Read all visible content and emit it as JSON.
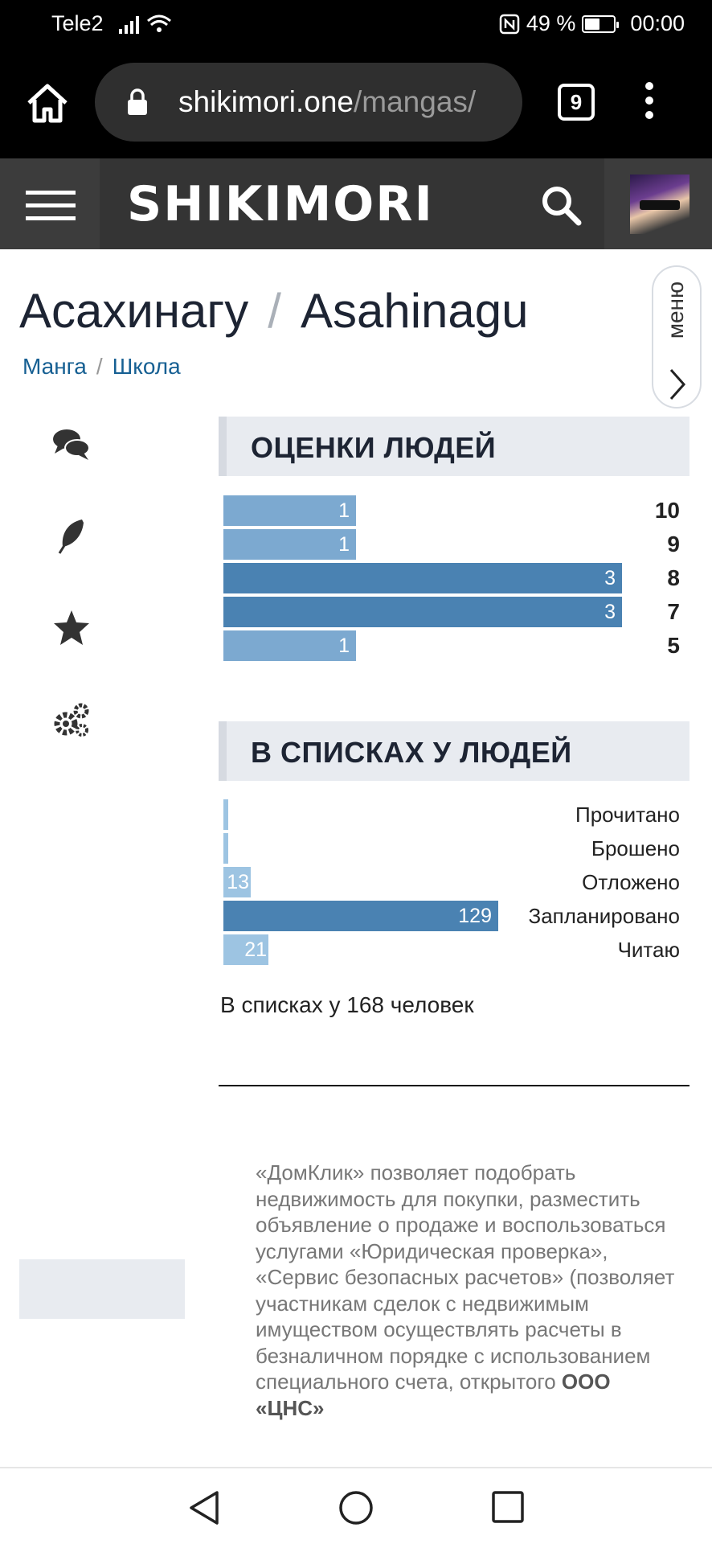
{
  "status_bar": {
    "carrier": "Tele2",
    "battery": "49 %",
    "time": "00:00",
    "battery_level": 0.49
  },
  "browser": {
    "url_host": "shikimori.one",
    "url_path": "/mangas/",
    "tab_count": "9"
  },
  "site": {
    "logo": "SHIKIMORI"
  },
  "title": {
    "ru": "Асахинагу",
    "separator": "/",
    "en": "Asahinagu"
  },
  "breadcrumbs": {
    "items": [
      "Манга",
      "Школа"
    ],
    "separator": "/"
  },
  "menu_tab": {
    "label": "меню"
  },
  "ratings": {
    "heading": "ОЦЕНКИ ЛЮДЕЙ",
    "rows": [
      {
        "score": "10",
        "count": "1"
      },
      {
        "score": "9",
        "count": "1"
      },
      {
        "score": "8",
        "count": "3"
      },
      {
        "score": "7",
        "count": "3"
      },
      {
        "score": "5",
        "count": "1"
      }
    ]
  },
  "lists": {
    "heading": "В СПИСКАХ У ЛЮДЕЙ",
    "rows": [
      {
        "label": "Прочитано",
        "count": ""
      },
      {
        "label": "Брошено",
        "count": ""
      },
      {
        "label": "Отложено",
        "count": "13"
      },
      {
        "label": "Запланировано",
        "count": "129"
      },
      {
        "label": "Читаю",
        "count": "21"
      }
    ],
    "total": "В списках у 168 человек"
  },
  "ad": {
    "text": "«ДомКлик» позволяет подобрать недвижимость для покупки, разместить объявление о продаже и воспользоваться услугами «Юридическая проверка», «Сервис безопасных расчетов» (позволяет участникам сделок с недвижимым имуществом осуществлять расчеты в безналичном порядке с использованием специального счета, открытого",
    "bold": "ООО «ЦНС»"
  },
  "icons": {
    "side": [
      "comments-icon",
      "feather-icon",
      "star-icon",
      "gears-icon"
    ],
    "nav": [
      "back-triangle-icon",
      "home-circle-icon",
      "recents-square-icon"
    ]
  },
  "colors": {
    "bar_light": "#7ca9d0",
    "bar_dark": "#4a82b2",
    "bar_pale": "#9dc4e2",
    "link": "#176093"
  }
}
